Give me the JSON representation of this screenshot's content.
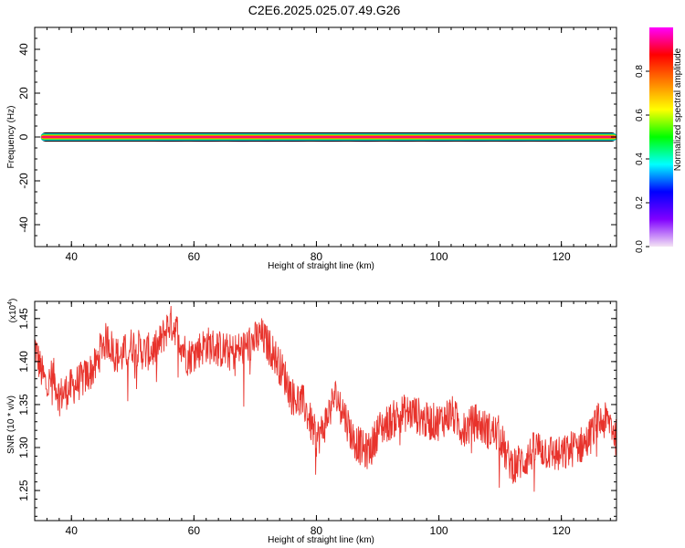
{
  "title": "C2E6.2025.025.07.49.G26",
  "chart_data": [
    {
      "type": "heatmap",
      "panel": "spectrogram",
      "xlabel": "Height of straight line (km)",
      "ylabel": "Frequency (Hz)",
      "xlim": [
        34,
        129
      ],
      "ylim": [
        -50,
        50
      ],
      "xticks": [
        40,
        60,
        80,
        100,
        120
      ],
      "yticks": [
        40,
        20,
        0,
        -20,
        -40
      ],
      "yticklabels": [
        "40",
        "20",
        "0",
        "-20",
        "-40"
      ],
      "band": {
        "frequency_hz": 0,
        "x_start": 35,
        "x_end": 129
      },
      "colorbar": {
        "label": "Normalized spectral amplitude",
        "range": [
          0,
          1
        ],
        "ticks": [
          "0.0",
          "0.2",
          "0.4",
          "0.6",
          "0.8"
        ],
        "tick_values": [
          0.0,
          0.2,
          0.4,
          0.6,
          0.8
        ],
        "colormap": [
          "#f4e4f4",
          "#8000ff",
          "#0000ff",
          "#00ffff",
          "#00ff00",
          "#ffff00",
          "#ff8000",
          "#ff0000",
          "#ff00ff"
        ]
      }
    },
    {
      "type": "line",
      "panel": "snr",
      "xlabel": "Height of straight line (km)",
      "ylabel": "SNR (10 * v/v)",
      "scale_label": "(x10",
      "scale_exponent": "4",
      "xlim": [
        34,
        129
      ],
      "ylim": [
        1.215,
        1.47
      ],
      "xticks": [
        40,
        60,
        80,
        100,
        120
      ],
      "yticks": [
        1.45,
        1.4,
        1.35,
        1.3,
        1.25
      ],
      "yticklabels": [
        "1.45",
        "1.40",
        "1.35",
        "1.30",
        "1.25"
      ],
      "color": "#e8332c",
      "x": [
        34,
        35,
        36,
        37,
        38,
        40,
        42,
        44,
        45,
        46,
        47,
        48,
        50,
        52,
        54,
        55,
        56,
        57,
        58,
        59,
        60,
        62,
        64,
        66,
        68,
        70,
        71,
        72,
        73,
        74,
        75,
        76,
        78,
        79,
        80,
        81,
        82,
        83,
        84,
        86,
        88,
        89,
        90,
        92,
        94,
        96,
        98,
        100,
        102,
        104,
        106,
        108,
        110,
        111,
        112,
        114,
        116,
        118,
        120,
        122,
        124,
        126,
        128,
        129
      ],
      "values": [
        1.42,
        1.39,
        1.37,
        1.385,
        1.36,
        1.37,
        1.38,
        1.395,
        1.42,
        1.425,
        1.41,
        1.405,
        1.42,
        1.41,
        1.415,
        1.43,
        1.445,
        1.44,
        1.42,
        1.405,
        1.41,
        1.42,
        1.415,
        1.41,
        1.415,
        1.425,
        1.43,
        1.42,
        1.41,
        1.395,
        1.38,
        1.36,
        1.35,
        1.33,
        1.31,
        1.32,
        1.34,
        1.36,
        1.35,
        1.31,
        1.295,
        1.3,
        1.32,
        1.33,
        1.34,
        1.34,
        1.33,
        1.33,
        1.34,
        1.32,
        1.33,
        1.32,
        1.315,
        1.29,
        1.28,
        1.285,
        1.3,
        1.295,
        1.29,
        1.3,
        1.305,
        1.33,
        1.33,
        1.31
      ]
    }
  ]
}
